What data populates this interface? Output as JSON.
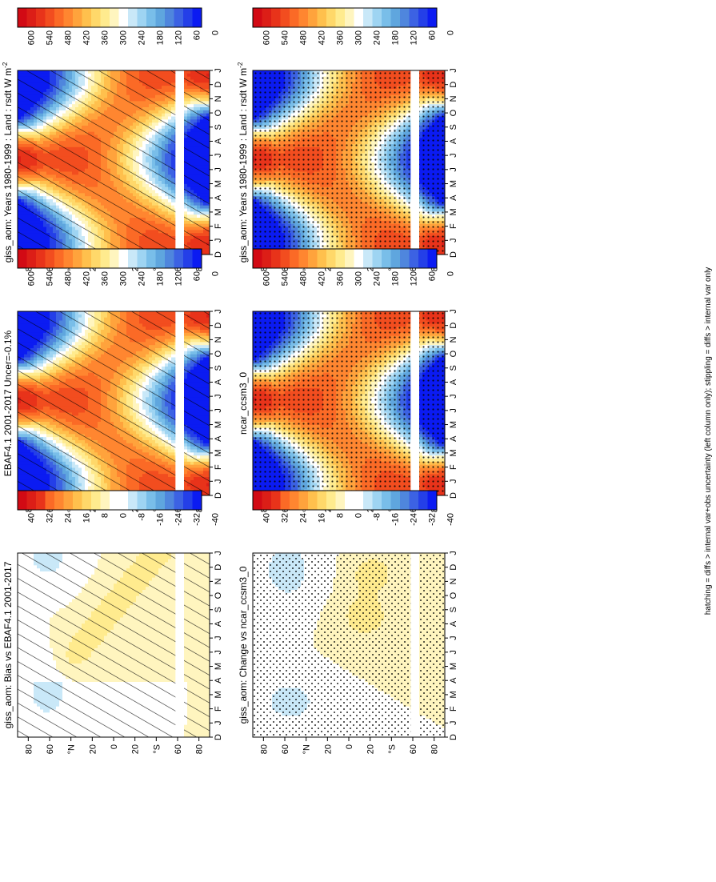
{
  "figure": {
    "footnote": "hatching = diffs > internal var+obs uncertainty (left column only); stippling = diffs > internal var only"
  },
  "colors": {
    "absolute_palette": [
      "#0b1bf2",
      "#243fe8",
      "#3c62e3",
      "#4f86dd",
      "#5fa6de",
      "#79bee9",
      "#9ed4f2",
      "#c9e8f8",
      "#ffffff",
      "#fff5bf",
      "#ffeb8e",
      "#ffd86a",
      "#ffc04d",
      "#ffa33c",
      "#ff8630",
      "#fb6a26",
      "#f24d1f",
      "#e8331a",
      "#dc1e17",
      "#d20a14"
    ],
    "diff_palette": [
      "#0b1bf2",
      "#243fe8",
      "#3c62e3",
      "#4f86dd",
      "#5fa6de",
      "#79bee9",
      "#9ed4f2",
      "#c9e8f8",
      "#ffffff",
      "#ffffff",
      "#fff5bf",
      "#ffeb8e",
      "#ffd86a",
      "#ffc04d",
      "#ffa33c",
      "#ff8630",
      "#fb6a26",
      "#e8331a",
      "#dc1e17",
      "#d20a14"
    ],
    "gap_band": "#ffffff"
  },
  "chart_data": [
    {
      "type": "heatmap",
      "panel": "top-left",
      "title": "giss_aom: Years 1980-1999 : Land : rsdt W m",
      "title_superscript": "-2",
      "x_ticklabels": [
        "J",
        "F",
        "M",
        "A",
        "M",
        "J",
        "J",
        "A",
        "S",
        "O",
        "N",
        "D",
        "J"
      ],
      "x_start_label": "D",
      "lat_ticklabels": [
        "80",
        "60",
        "°N",
        "20",
        "0",
        "20",
        "°S",
        "60",
        "80"
      ],
      "colorbar_labels": [
        "600",
        "540",
        "480",
        "420",
        "360",
        "300",
        "240",
        "180",
        "120",
        "60",
        "0"
      ],
      "vmin": 0,
      "vmax": 600,
      "field": "insolation",
      "months": 14,
      "lat_range": [
        -90,
        90
      ],
      "overlay": "hatching",
      "masked_lat_band": [
        -66,
        -58
      ]
    },
    {
      "type": "heatmap",
      "panel": "middle-left",
      "title": "EBAF4.1 2001-2017 Uncer=-0.1%",
      "x_ticklabels": [
        "J",
        "F",
        "M",
        "A",
        "M",
        "J",
        "J",
        "A",
        "S",
        "O",
        "N",
        "D",
        "J"
      ],
      "x_start_label": "D",
      "lat_ticklabels": [
        "80",
        "60",
        "°N",
        "20",
        "0",
        "20",
        "°S",
        "60",
        "80"
      ],
      "colorbar_labels": [
        "600",
        "540",
        "480",
        "420",
        "360",
        "300",
        "240",
        "180",
        "120",
        "60",
        "0"
      ],
      "vmin": 0,
      "vmax": 600,
      "field": "insolation",
      "months": 14,
      "lat_range": [
        -90,
        90
      ],
      "overlay": "hatching",
      "masked_lat_band": [
        -66,
        -58
      ]
    },
    {
      "type": "heatmap",
      "panel": "bottom-left",
      "title": "giss_aom: Bias vs EBAF4.1 2001-2017",
      "x_ticklabels": [
        "J",
        "F",
        "M",
        "A",
        "M",
        "J",
        "J",
        "A",
        "S",
        "O",
        "N",
        "D",
        "J"
      ],
      "x_start_label": "D",
      "lat_ticklabels": [
        "80",
        "60",
        "°N",
        "20",
        "0",
        "20",
        "°S",
        "60",
        "80"
      ],
      "colorbar_labels": [
        "40",
        "32",
        "24",
        "16",
        "8",
        "0",
        "-8",
        "-16",
        "-24",
        "-32",
        "-40"
      ],
      "vmin": -40,
      "vmax": 40,
      "field": "bias",
      "months": 14,
      "lat_range": [
        -90,
        90
      ],
      "overlay": "hatching",
      "masked_lat_band": [
        -66,
        -58
      ]
    },
    {
      "type": "heatmap",
      "panel": "top-right",
      "title": "giss_aom: Years 1980-1999 : Land : rsdt W m",
      "title_superscript": "-2",
      "x_ticklabels": [
        "J",
        "F",
        "M",
        "A",
        "M",
        "J",
        "J",
        "A",
        "S",
        "O",
        "N",
        "D",
        "J"
      ],
      "x_start_label": "D",
      "lat_ticklabels": [
        "80",
        "60",
        "°N",
        "20",
        "0",
        "20",
        "°S",
        "60",
        "80"
      ],
      "colorbar_labels": [
        "600",
        "540",
        "480",
        "420",
        "360",
        "300",
        "240",
        "180",
        "120",
        "60",
        "0"
      ],
      "vmin": 0,
      "vmax": 600,
      "field": "insolation",
      "months": 14,
      "lat_range": [
        -90,
        90
      ],
      "overlay": "stipple",
      "masked_lat_band": [
        -66,
        -58
      ]
    },
    {
      "type": "heatmap",
      "panel": "middle-right",
      "title": "ncar_ccsm3_0",
      "x_ticklabels": [
        "J",
        "F",
        "M",
        "A",
        "M",
        "J",
        "J",
        "A",
        "S",
        "O",
        "N",
        "D",
        "J"
      ],
      "x_start_label": "D",
      "lat_ticklabels": [
        "80",
        "60",
        "°N",
        "20",
        "0",
        "20",
        "°S",
        "60",
        "80"
      ],
      "colorbar_labels": [
        "600",
        "540",
        "480",
        "420",
        "360",
        "300",
        "240",
        "180",
        "120",
        "60",
        "0"
      ],
      "vmin": 0,
      "vmax": 600,
      "field": "insolation",
      "months": 14,
      "lat_range": [
        -90,
        90
      ],
      "overlay": "stipple",
      "masked_lat_band": [
        -66,
        -58
      ]
    },
    {
      "type": "heatmap",
      "panel": "bottom-right",
      "title": "giss_aom: Change vs ncar_ccsm3_0",
      "x_ticklabels": [
        "J",
        "F",
        "M",
        "A",
        "M",
        "J",
        "J",
        "A",
        "S",
        "O",
        "N",
        "D",
        "J"
      ],
      "x_start_label": "D",
      "lat_ticklabels": [
        "80",
        "60",
        "°N",
        "20",
        "0",
        "20",
        "°S",
        "60",
        "80"
      ],
      "colorbar_labels": [
        "40",
        "32",
        "24",
        "16",
        "8",
        "0",
        "-8",
        "-16",
        "-24",
        "-32",
        "-40"
      ],
      "vmin": -40,
      "vmax": 40,
      "field": "change",
      "months": 14,
      "lat_range": [
        -90,
        90
      ],
      "overlay": "stipple-dense",
      "masked_lat_band": [
        -66,
        -58
      ]
    }
  ]
}
